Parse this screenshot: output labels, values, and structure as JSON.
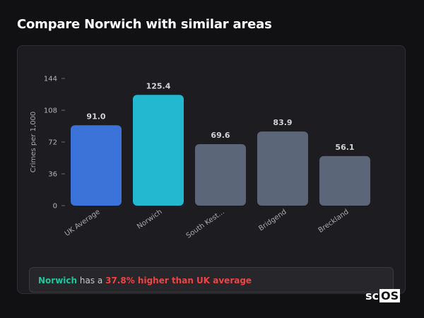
{
  "page": {
    "title": "Compare Norwich with similar areas"
  },
  "summary": {
    "city": "Norwich",
    "middle": "has a",
    "diff_text": "37.8% higher than UK average"
  },
  "brand": {
    "prefix": "sc",
    "box": "OS"
  },
  "chart_data": {
    "type": "bar",
    "ylabel": "Crimes per 1,000",
    "ylim": [
      0,
      144
    ],
    "yticks": [
      0,
      36,
      72,
      108,
      144
    ],
    "categories": [
      "UK Average",
      "Norwich",
      "South Kest...",
      "Bridgend",
      "Breckland"
    ],
    "values": [
      91.0,
      125.4,
      69.6,
      83.9,
      56.1
    ],
    "value_labels": [
      "91.0",
      "125.4",
      "69.6",
      "83.9",
      "56.1"
    ],
    "colors": [
      "#3b73d9",
      "#22b8cf",
      "#5b6678",
      "#5b6678",
      "#5b6678"
    ],
    "grid": false,
    "legend": "none"
  }
}
